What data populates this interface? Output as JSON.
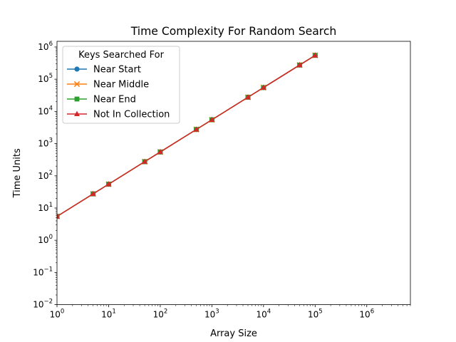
{
  "chart_data": {
    "type": "line",
    "title": "Time Complexity For Random Search",
    "xlabel": "Array Size",
    "ylabel": "Time Units",
    "xscale": "log",
    "yscale": "log",
    "xlim": [
      1,
      7000000
    ],
    "ylim": [
      0.01,
      1500000
    ],
    "grid": false,
    "x": [
      1,
      5,
      10,
      50,
      100,
      500,
      1000,
      5000,
      10000,
      50000,
      100000
    ],
    "series": [
      {
        "name": "Near Start",
        "marker": "circle",
        "color": "#1f77b4",
        "values": [
          5.5,
          27.5,
          55,
          275,
          550,
          2750,
          5500,
          27500,
          55000,
          275000,
          550000
        ]
      },
      {
        "name": "Near Middle",
        "marker": "x",
        "color": "#ff7f0e",
        "values": [
          5.5,
          27.5,
          55,
          275,
          550,
          2750,
          5500,
          27500,
          55000,
          275000,
          550000
        ]
      },
      {
        "name": "Near End",
        "marker": "square",
        "color": "#2ca02c",
        "values": [
          5.5,
          27.5,
          55,
          275,
          550,
          2750,
          5500,
          27500,
          55000,
          275000,
          550000
        ]
      },
      {
        "name": "Not In Collection",
        "marker": "triangle",
        "color": "#d62728",
        "values": [
          5.5,
          27.5,
          55,
          275,
          550,
          2750,
          5500,
          27500,
          55000,
          275000,
          550000
        ]
      }
    ],
    "legend": {
      "title": "Keys Searched For",
      "placement": "upper-left"
    },
    "xticks": [
      {
        "base": "10",
        "exp": "0",
        "value": 1
      },
      {
        "base": "10",
        "exp": "1",
        "value": 10
      },
      {
        "base": "10",
        "exp": "2",
        "value": 100
      },
      {
        "base": "10",
        "exp": "3",
        "value": 1000
      },
      {
        "base": "10",
        "exp": "4",
        "value": 10000
      },
      {
        "base": "10",
        "exp": "5",
        "value": 100000
      },
      {
        "base": "10",
        "exp": "6",
        "value": 1000000
      }
    ],
    "yticks": [
      {
        "base": "10",
        "exp": "−2",
        "value": 0.01
      },
      {
        "base": "10",
        "exp": "−1",
        "value": 0.1
      },
      {
        "base": "10",
        "exp": "0",
        "value": 1
      },
      {
        "base": "10",
        "exp": "1",
        "value": 10
      },
      {
        "base": "10",
        "exp": "2",
        "value": 100
      },
      {
        "base": "10",
        "exp": "3",
        "value": 1000
      },
      {
        "base": "10",
        "exp": "4",
        "value": 10000
      },
      {
        "base": "10",
        "exp": "5",
        "value": 100000
      },
      {
        "base": "10",
        "exp": "6",
        "value": 1000000
      }
    ]
  }
}
